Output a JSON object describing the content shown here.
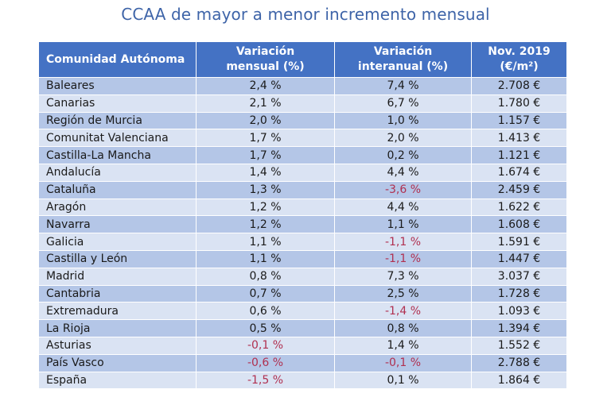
{
  "chart_data": {
    "type": "table",
    "title": "CCAA de mayor a menor incremento mensual",
    "columns": [
      "Comunidad Autónoma",
      "Variación mensual (%)",
      "Variación interanual (%)",
      "Nov. 2019 (€/m²)"
    ],
    "header_lines": [
      [
        "Comunidad Autónoma"
      ],
      [
        "Variación",
        "mensual (%)"
      ],
      [
        "Variación",
        "interanual (%)"
      ],
      [
        "Nov. 2019",
        "(€/m²)"
      ]
    ],
    "rows": [
      [
        "Baleares",
        "2,4 %",
        "7,4 %",
        "2.708 €"
      ],
      [
        "Canarias",
        "2,1 %",
        "6,7 %",
        "1.780 €"
      ],
      [
        "Región de Murcia",
        "2,0 %",
        "1,0 %",
        "1.157 €"
      ],
      [
        "Comunitat Valenciana",
        "1,7 %",
        "2,0 %",
        "1.413 €"
      ],
      [
        "Castilla-La Mancha",
        "1,7 %",
        "0,2 %",
        "1.121 €"
      ],
      [
        "Andalucía",
        "1,4 %",
        "4,4 %",
        "1.674 €"
      ],
      [
        "Cataluña",
        "1,3 %",
        "-3,6 %",
        "2.459 €"
      ],
      [
        "Aragón",
        "1,2 %",
        "4,4 %",
        "1.622 €"
      ],
      [
        "Navarra",
        "1,2 %",
        "1,1 %",
        "1.608 €"
      ],
      [
        "Galicia",
        "1,1 %",
        "-1,1 %",
        "1.591 €"
      ],
      [
        "Castilla y León",
        "1,1 %",
        "-1,1 %",
        "1.447 €"
      ],
      [
        "Madrid",
        "0,8 %",
        "7,3 %",
        "3.037 €"
      ],
      [
        "Cantabria",
        "0,7 %",
        "2,5 %",
        "1.728 €"
      ],
      [
        "Extremadura",
        "0,6 %",
        "-1,4 %",
        "1.093 €"
      ],
      [
        "La Rioja",
        "0,5 %",
        "0,8 %",
        "1.394 €"
      ],
      [
        "Asturias",
        "-0,1 %",
        "1,4 %",
        "1.552 €"
      ],
      [
        "País Vasco",
        "-0,6 %",
        "-0,1 %",
        "2.788 €"
      ],
      [
        "España",
        "-1,5 %",
        "0,1 %",
        "1.864 €"
      ]
    ],
    "colors": {
      "header_bg": "#4472c4",
      "header_text": "#ffffff",
      "row_dark": "#b4c6e7",
      "row_light": "#dae3f3",
      "negative_text": "#b03050",
      "title_text": "#3e64a8"
    }
  }
}
